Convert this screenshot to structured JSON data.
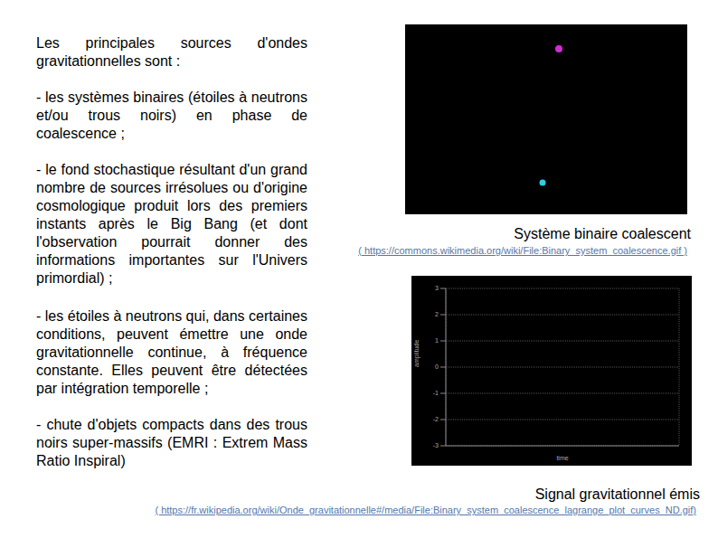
{
  "slide": {
    "intro": "Les principales sources d'ondes gravitationnelles sont :",
    "items": [
      "- les systèmes binaires (étoiles à neutrons et/ou trous noirs) en phase de coalescence ;",
      "- le fond stochastique résultant d'un grand nombre de sources irrésolues ou d'origine cosmologique produit lors des premiers instants après le Big Bang (et dont l'observation pourrait donner des informations importantes sur l'Univers primordial) ;",
      "- les étoiles à neutrons qui, dans certaines conditions, peuvent émettre une onde gravitationnelle continue, à fréquence constante. Elles peuvent être détectées par intégration temporelle ;",
      "- chute d'objets compacts dans des trous noirs super-massifs (EMRI : Extrem Mass Ratio Inspiral)"
    ]
  },
  "figures": [
    {
      "caption": "Système binaire coalescent",
      "source": "( https://commons.wikimedia.org/wiki/File:Binary_system_coalescence.gif )"
    },
    {
      "caption": "Signal gravitationnel émis",
      "source": "( https://fr.wikipedia.org/wiki/Onde_gravitationnelle#/media/File:Binary_system_coalescence_lagrange_plot_curves_ND.gif)"
    }
  ],
  "chart_data": {
    "type": "line",
    "xlabel": "time",
    "ylabel": "amplitude",
    "xlim": [
      0,
      8
    ],
    "xticks": [
      0,
      1,
      2,
      3,
      4,
      5,
      6,
      7,
      8
    ],
    "ylim": [
      -3,
      3
    ],
    "yticks": [
      -3,
      -2,
      -1,
      0,
      1,
      2,
      3
    ],
    "grid": true,
    "tick_labels": "y"
  }
}
